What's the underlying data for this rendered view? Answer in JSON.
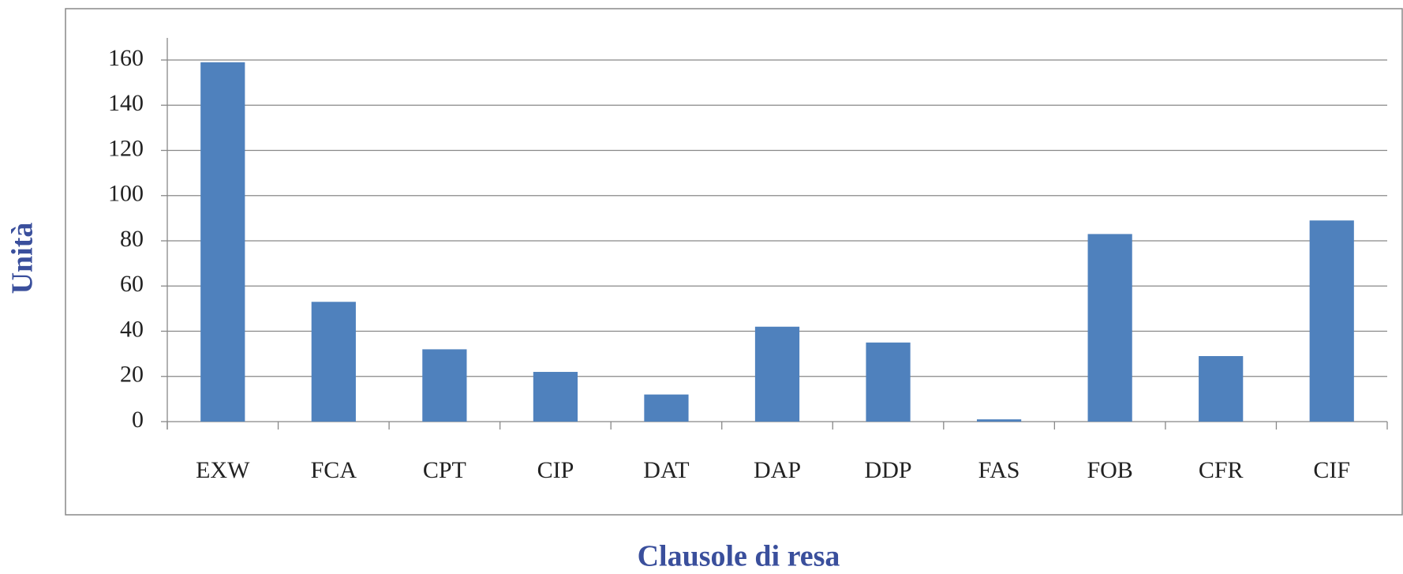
{
  "chart_data": {
    "type": "bar",
    "x_label": "Clausole di resa",
    "y_label": "Unità",
    "categories": [
      "EXW",
      "FCA",
      "CPT",
      "CIP",
      "DAT",
      "DAP",
      "DDP",
      "FAS",
      "FOB",
      "CFR",
      "CIF"
    ],
    "values": [
      159,
      53,
      32,
      22,
      12,
      42,
      35,
      1,
      83,
      29,
      89
    ],
    "color": "#4f81bd",
    "ylim": [
      0,
      160
    ],
    "yticks": [
      0,
      20,
      40,
      60,
      80,
      100,
      120,
      140,
      160
    ],
    "grid": true
  }
}
